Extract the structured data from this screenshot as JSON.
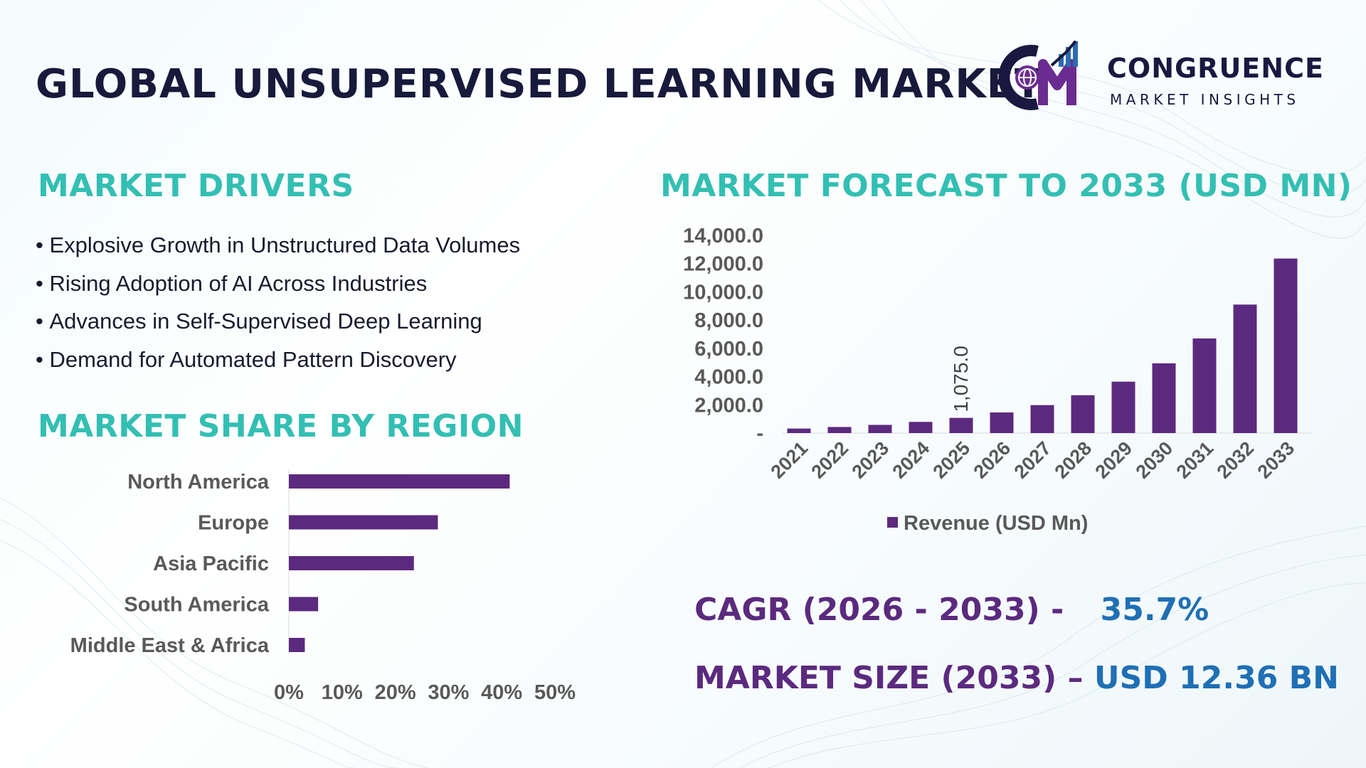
{
  "title": "GLOBAL UNSUPERVISED LEARNING MARKET",
  "logo": {
    "name": "CONGRUENCE",
    "tagline": "MARKET INSIGHTS",
    "colors": {
      "navy": "#1a1840",
      "purple": "#6b2c91",
      "blue": "#2b6cb0"
    }
  },
  "drivers": {
    "heading": "MARKET DRIVERS",
    "items": [
      "Explosive Growth in Unstructured Data Volumes",
      "Rising Adoption of AI Across Industries",
      "Advances in Self-Supervised Deep Learning",
      "Demand for Automated Pattern Discovery"
    ]
  },
  "region": {
    "heading": "MARKET SHARE BY REGION"
  },
  "forecast": {
    "heading": "MARKET FORECAST TO 2033 (USD MN)"
  },
  "kpis": {
    "cagr_label": "CAGR (2026 - 2033) -",
    "cagr_value": "35.7%",
    "size_label": "MARKET SIZE (2033) –",
    "size_value": "USD 12.36 BN"
  },
  "colors": {
    "heading": "#33bfb3",
    "bar": "#5b2a7f",
    "value": "#1f6fb5",
    "title": "#181a3c"
  },
  "chart_data": [
    {
      "type": "bar",
      "orientation": "horizontal",
      "categories": [
        "North America",
        "Europe",
        "Asia Pacific",
        "South America",
        "Middle East & Africa"
      ],
      "values": [
        41.5,
        28,
        23.5,
        5.5,
        3
      ],
      "xlim": [
        0,
        50
      ],
      "x_ticks": [
        "0%",
        "10%",
        "20%",
        "30%",
        "40%",
        "50%"
      ],
      "grid": false,
      "color": "#5b2a7f"
    },
    {
      "type": "bar",
      "categories": [
        "2021",
        "2022",
        "2023",
        "2024",
        "2025",
        "2026",
        "2027",
        "2028",
        "2029",
        "2030",
        "2031",
        "2032",
        "2033"
      ],
      "series": [
        {
          "name": "Revenue (USD Mn)",
          "values": [
            320,
            430,
            580,
            790,
            1075,
            1460,
            1980,
            2680,
            3640,
            4940,
            6700,
            9100,
            12360
          ]
        }
      ],
      "data_labels": [
        {
          "index": 4,
          "text": "1,075.0"
        }
      ],
      "y_ticks": [
        "-",
        "2,000.0",
        "4,000.0",
        "6,000.0",
        "8,000.0",
        "10,000.0",
        "12,000.0",
        "14,000.0"
      ],
      "ylim": [
        0,
        14000
      ],
      "legend": "bottom",
      "grid": false,
      "color": "#5b2a7f"
    }
  ]
}
